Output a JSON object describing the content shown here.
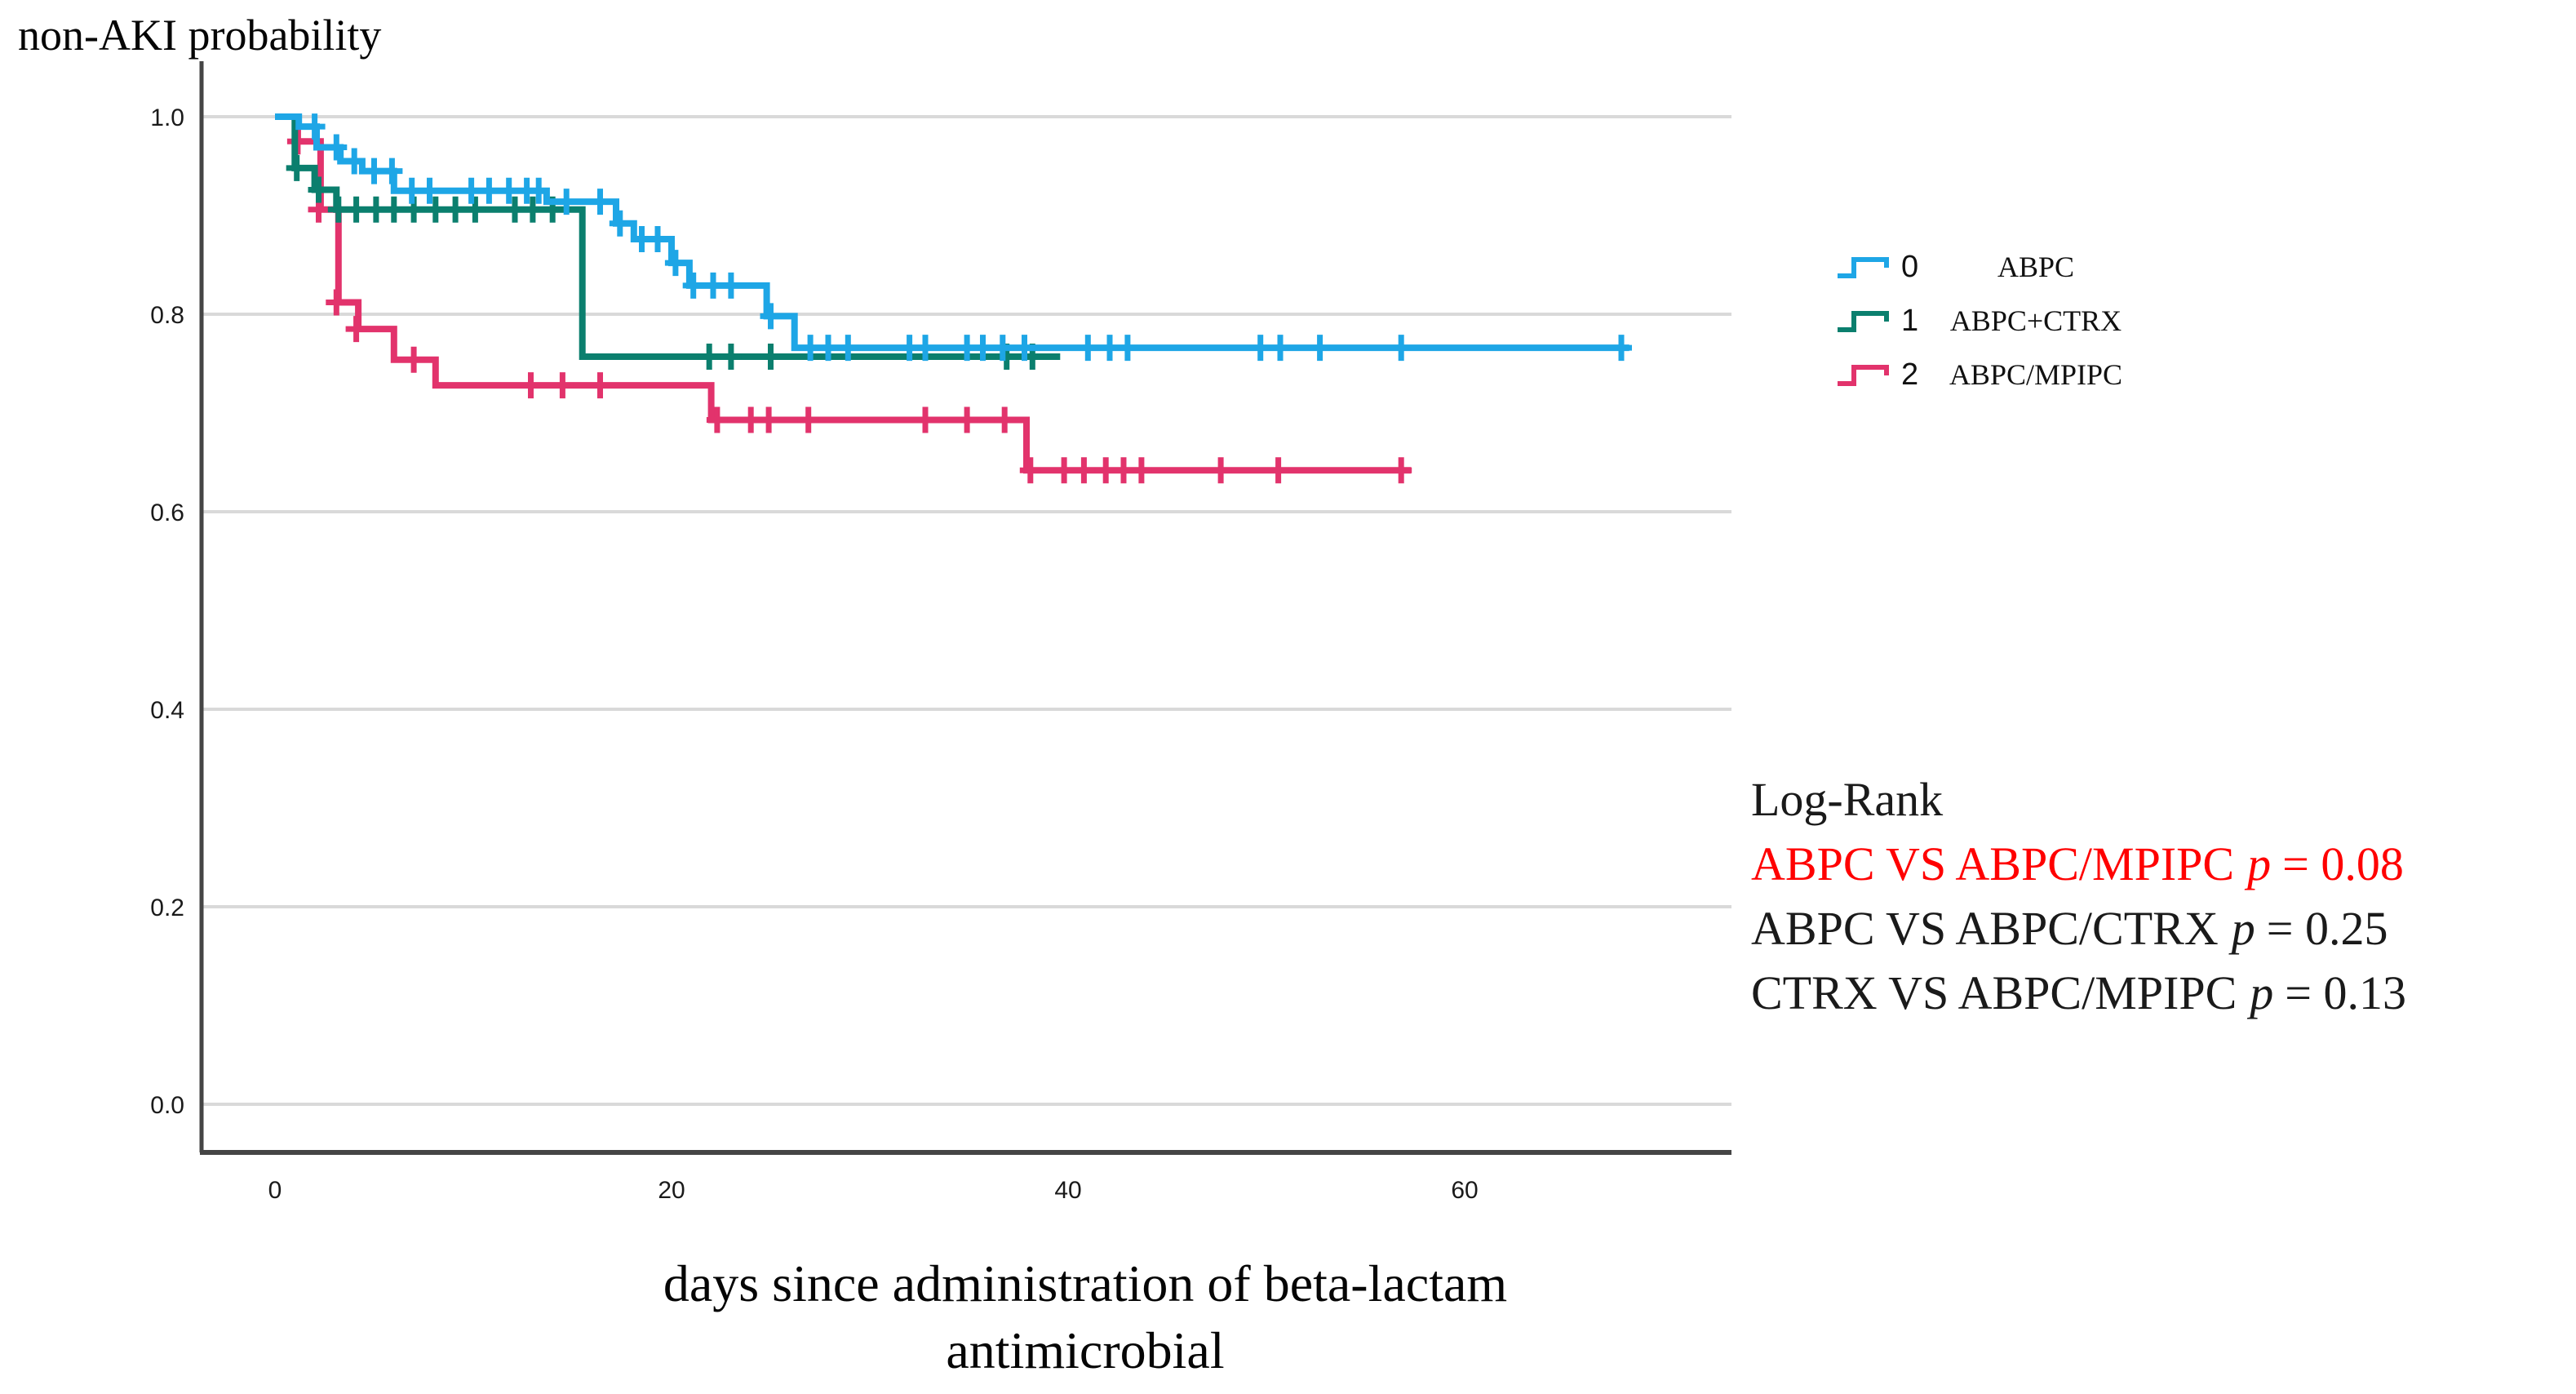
{
  "figure": {
    "title": "non-AKI probability",
    "x_axis_label_line1": "days since administration of beta-lactam",
    "x_axis_label_line2": "antimicrobial"
  },
  "log_rank": {
    "heading": "Log-Rank",
    "comparisons": [
      {
        "pair": "ABPC VS ABPC/MPIPC",
        "p_symbol": "p",
        "p_value": "= 0.08",
        "color": "#ff0000"
      },
      {
        "pair": "ABPC VS ABPC/CTRX",
        "p_symbol": "p",
        "p_value": "= 0.25",
        "color": "#1a1a1a"
      },
      {
        "pair": "CTRX VS ABPC/MPIPC",
        "p_symbol": "p",
        "p_value": "= 0.13",
        "color": "#1a1a1a"
      }
    ]
  },
  "chart_data": {
    "type": "line",
    "subtype": "kaplan_meier_step",
    "title": "non-AKI probability",
    "xlabel": "days since administration of beta-lactam antimicrobial",
    "ylabel": "non-AKI probability",
    "xlim": [
      0,
      73
    ],
    "ylim": [
      0.0,
      1.0
    ],
    "x_ticks": [
      0,
      20,
      40,
      60
    ],
    "y_ticks": [
      "1.0",
      "0.8",
      "0.6",
      "0.4",
      "0.2",
      "0.0"
    ],
    "grid": true,
    "legend_position": "right",
    "grid_color": "#d9d9d9",
    "axis_color": "#454545",
    "series": [
      {
        "code": "2",
        "name": "ABPC/MPIPC",
        "color": "#e2336c",
        "steps": [
          [
            0,
            1.0
          ],
          [
            1.15,
            0.975
          ],
          [
            2.3,
            0.906
          ],
          [
            3.2,
            0.812
          ],
          [
            4.2,
            0.785
          ],
          [
            6.0,
            0.754
          ],
          [
            8.1,
            0.728
          ],
          [
            22.0,
            0.693
          ],
          [
            37.9,
            0.642
          ]
        ],
        "end_day": 57.3,
        "censors": [
          [
            1.15,
            0.975
          ],
          [
            2.2,
            0.906
          ],
          [
            3.1,
            0.812
          ],
          [
            4.1,
            0.785
          ],
          [
            7.0,
            0.754
          ],
          [
            12.9,
            0.728
          ],
          [
            14.5,
            0.728
          ],
          [
            16.4,
            0.728
          ],
          [
            22.3,
            0.693
          ],
          [
            24.0,
            0.693
          ],
          [
            24.9,
            0.693
          ],
          [
            26.9,
            0.693
          ],
          [
            32.8,
            0.693
          ],
          [
            34.9,
            0.693
          ],
          [
            36.8,
            0.693
          ],
          [
            38.1,
            0.642
          ],
          [
            39.8,
            0.642
          ],
          [
            40.8,
            0.642
          ],
          [
            41.9,
            0.642
          ],
          [
            42.8,
            0.642
          ],
          [
            43.7,
            0.642
          ],
          [
            47.7,
            0.642
          ],
          [
            50.6,
            0.642
          ],
          [
            56.8,
            0.642
          ]
        ]
      },
      {
        "code": "1",
        "name": "ABPC+CTRX",
        "color": "#0b7f6e",
        "steps": [
          [
            0,
            1.0
          ],
          [
            1.0,
            0.948
          ],
          [
            2.0,
            0.926
          ],
          [
            3.1,
            0.906
          ],
          [
            15.5,
            0.757
          ]
        ],
        "end_day": 39.6,
        "censors": [
          [
            1.1,
            0.948
          ],
          [
            2.2,
            0.926
          ],
          [
            3.2,
            0.906
          ],
          [
            4.1,
            0.906
          ],
          [
            5.1,
            0.906
          ],
          [
            6.0,
            0.906
          ],
          [
            7.0,
            0.906
          ],
          [
            8.1,
            0.906
          ],
          [
            9.1,
            0.906
          ],
          [
            10.1,
            0.906
          ],
          [
            12.1,
            0.906
          ],
          [
            13.0,
            0.906
          ],
          [
            14.0,
            0.906
          ],
          [
            21.9,
            0.757
          ],
          [
            23.0,
            0.757
          ],
          [
            25.0,
            0.757
          ],
          [
            36.9,
            0.757
          ],
          [
            38.2,
            0.757
          ]
        ]
      },
      {
        "code": "0",
        "name": "ABPC",
        "color": "#1ea6e6",
        "steps": [
          [
            0,
            1.0
          ],
          [
            1.2,
            0.99
          ],
          [
            2.1,
            0.969
          ],
          [
            3.3,
            0.955
          ],
          [
            4.4,
            0.945
          ],
          [
            6.0,
            0.925
          ],
          [
            13.7,
            0.914
          ],
          [
            17.2,
            0.892
          ],
          [
            18.1,
            0.876
          ],
          [
            20.0,
            0.852
          ],
          [
            20.9,
            0.829
          ],
          [
            24.8,
            0.798
          ],
          [
            26.2,
            0.766
          ]
        ],
        "end_day": 68.3,
        "censors": [
          [
            2.0,
            0.99
          ],
          [
            3.1,
            0.969
          ],
          [
            4.0,
            0.955
          ],
          [
            5.0,
            0.945
          ],
          [
            5.9,
            0.945
          ],
          [
            6.9,
            0.925
          ],
          [
            7.8,
            0.925
          ],
          [
            9.9,
            0.925
          ],
          [
            10.8,
            0.925
          ],
          [
            11.8,
            0.925
          ],
          [
            12.7,
            0.925
          ],
          [
            13.3,
            0.925
          ],
          [
            14.7,
            0.914
          ],
          [
            16.4,
            0.914
          ],
          [
            17.4,
            0.892
          ],
          [
            18.5,
            0.876
          ],
          [
            19.3,
            0.876
          ],
          [
            20.2,
            0.852
          ],
          [
            21.1,
            0.829
          ],
          [
            22.1,
            0.829
          ],
          [
            23.0,
            0.829
          ],
          [
            25.0,
            0.798
          ],
          [
            27.0,
            0.766
          ],
          [
            27.9,
            0.766
          ],
          [
            28.9,
            0.766
          ],
          [
            32.0,
            0.766
          ],
          [
            32.8,
            0.766
          ],
          [
            34.9,
            0.766
          ],
          [
            35.7,
            0.766
          ],
          [
            36.7,
            0.766
          ],
          [
            37.8,
            0.766
          ],
          [
            41.0,
            0.766
          ],
          [
            42.1,
            0.766
          ],
          [
            43.0,
            0.766
          ],
          [
            49.7,
            0.766
          ],
          [
            50.7,
            0.766
          ],
          [
            52.7,
            0.766
          ],
          [
            56.8,
            0.766
          ],
          [
            67.9,
            0.766
          ]
        ]
      }
    ]
  }
}
